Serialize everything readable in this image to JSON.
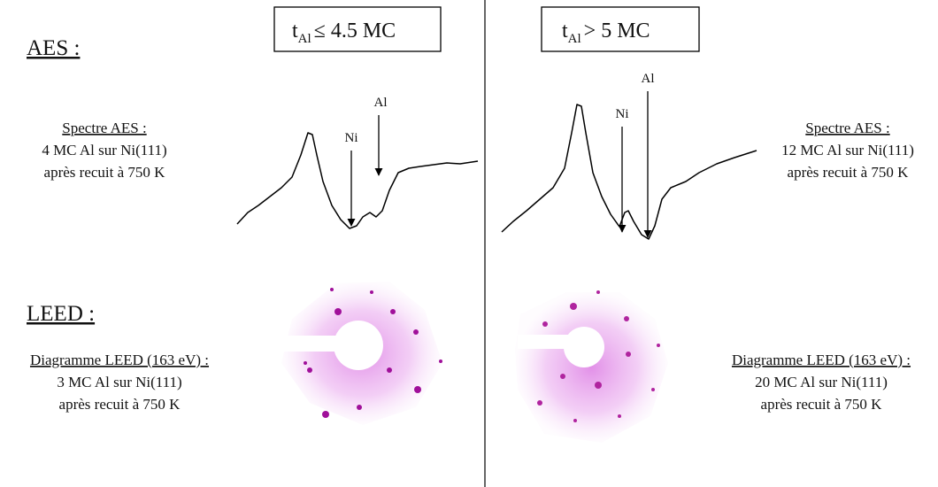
{
  "columns": [
    {
      "condition": {
        "symbol": "t",
        "subscript": "Al",
        "relation": "≤ 4.5 MC"
      },
      "aes": {
        "caption": [
          "Spectre AES :",
          "4 MC Al sur Ni(111)",
          "après recuit à 750 K"
        ],
        "peaks": [
          "Ni",
          "Al"
        ]
      },
      "leed": {
        "caption": [
          "Diagramme LEED (163 eV) :",
          "3 MC Al sur Ni(111)",
          "après recuit à 750 K"
        ]
      }
    },
    {
      "condition": {
        "symbol": "t",
        "subscript": "Al",
        "relation": "> 5 MC"
      },
      "aes": {
        "caption": [
          "Spectre AES :",
          "12 MC Al sur Ni(111)",
          "après recuit à 750 K"
        ],
        "peaks": [
          "Ni",
          "Al"
        ]
      },
      "leed": {
        "caption": [
          "Diagramme LEED (163 eV) :",
          "20 MC Al sur Ni(111)",
          "après recuit à 750 K"
        ]
      }
    }
  ],
  "sections": {
    "aes": "AES :",
    "leed": "LEED :"
  }
}
